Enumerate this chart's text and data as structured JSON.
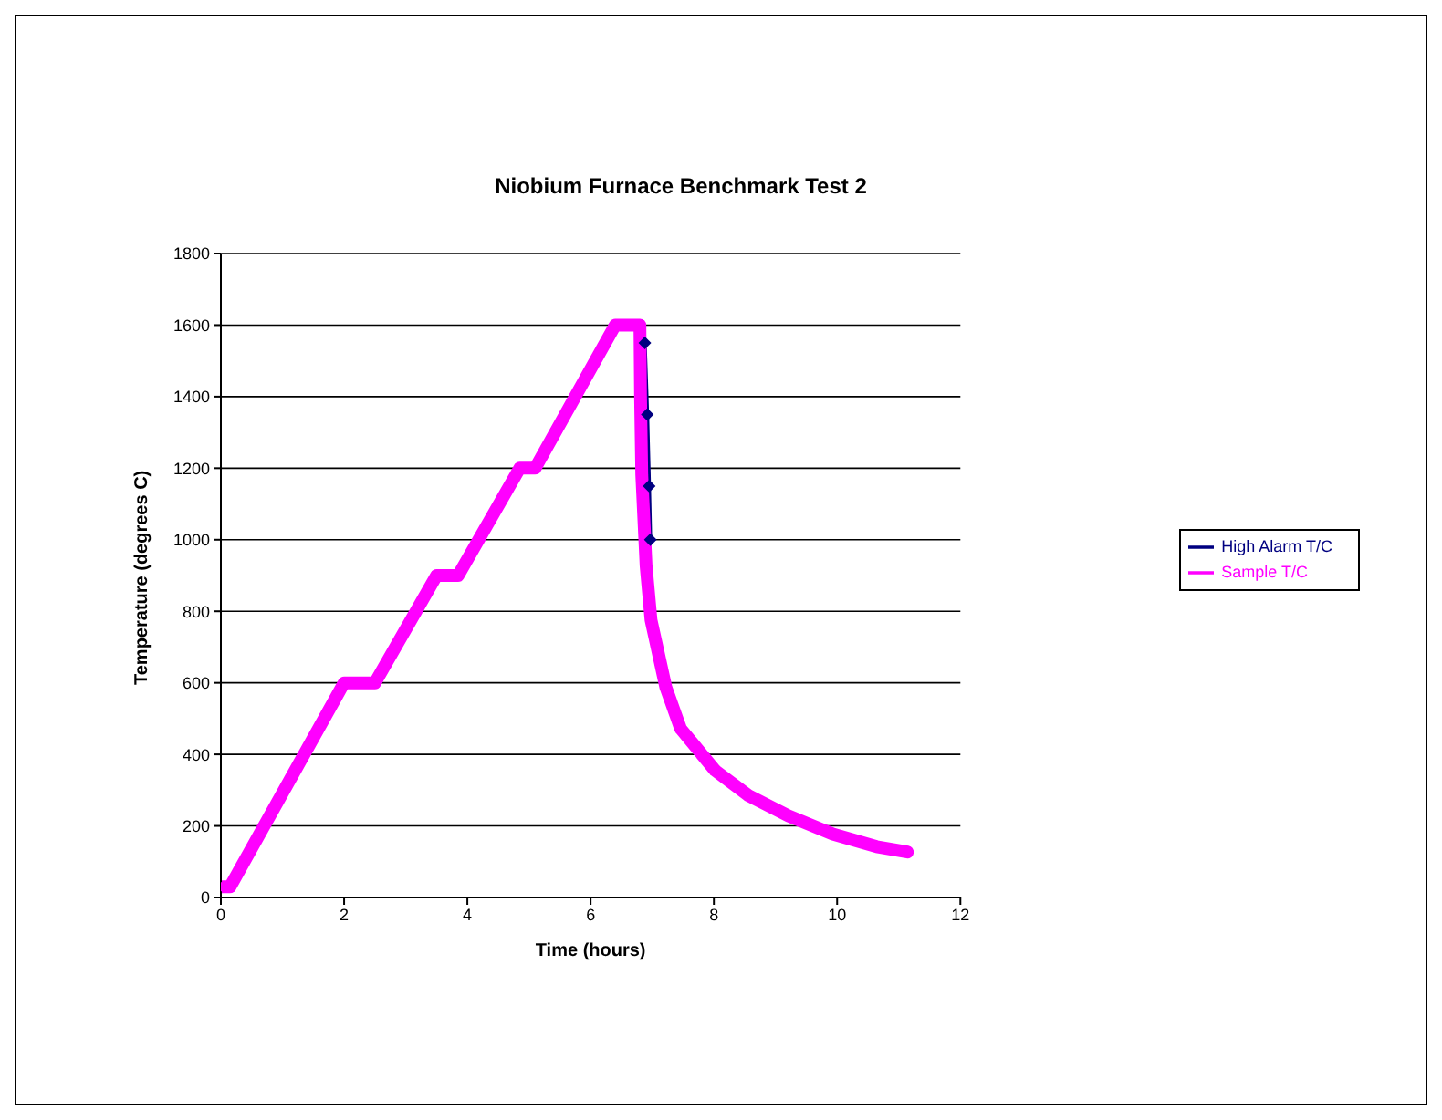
{
  "chart_data": {
    "type": "line",
    "title": "Niobium Furnace Benchmark Test 2",
    "xlabel": "Time (hours)",
    "ylabel": "Temperature (degrees C)",
    "xlim": [
      0,
      12
    ],
    "xticks": [
      0,
      2,
      4,
      6,
      8,
      10,
      12
    ],
    "ylim": [
      0,
      1800
    ],
    "yticks": [
      0,
      200,
      400,
      600,
      800,
      1000,
      1200,
      1400,
      1600,
      1800
    ],
    "grid": "y",
    "legend": "right",
    "line_style": "solid",
    "series": [
      {
        "name": "High Alarm T/C",
        "color": "#000080",
        "marker": "diamond",
        "x": [
          6.88,
          6.92,
          6.95,
          6.97
        ],
        "values": [
          1550,
          1350,
          1150,
          1000
        ]
      },
      {
        "name": "Sample T/C",
        "color": "#ff00ff",
        "marker": "square",
        "x": [
          0,
          0.15,
          2,
          2.5,
          3.5,
          3.85,
          4.85,
          5.1,
          6.4,
          6.8,
          6.81,
          6.83,
          6.9,
          6.98,
          7.22,
          7.46,
          8.02,
          8.57,
          9.21,
          9.93,
          10.64,
          11.14
        ],
        "values": [
          30,
          30,
          600,
          600,
          900,
          900,
          1200,
          1200,
          1600,
          1600,
          1400,
          1182,
          928,
          776,
          588,
          472,
          355,
          284,
          228,
          177,
          142,
          127
        ]
      }
    ]
  }
}
